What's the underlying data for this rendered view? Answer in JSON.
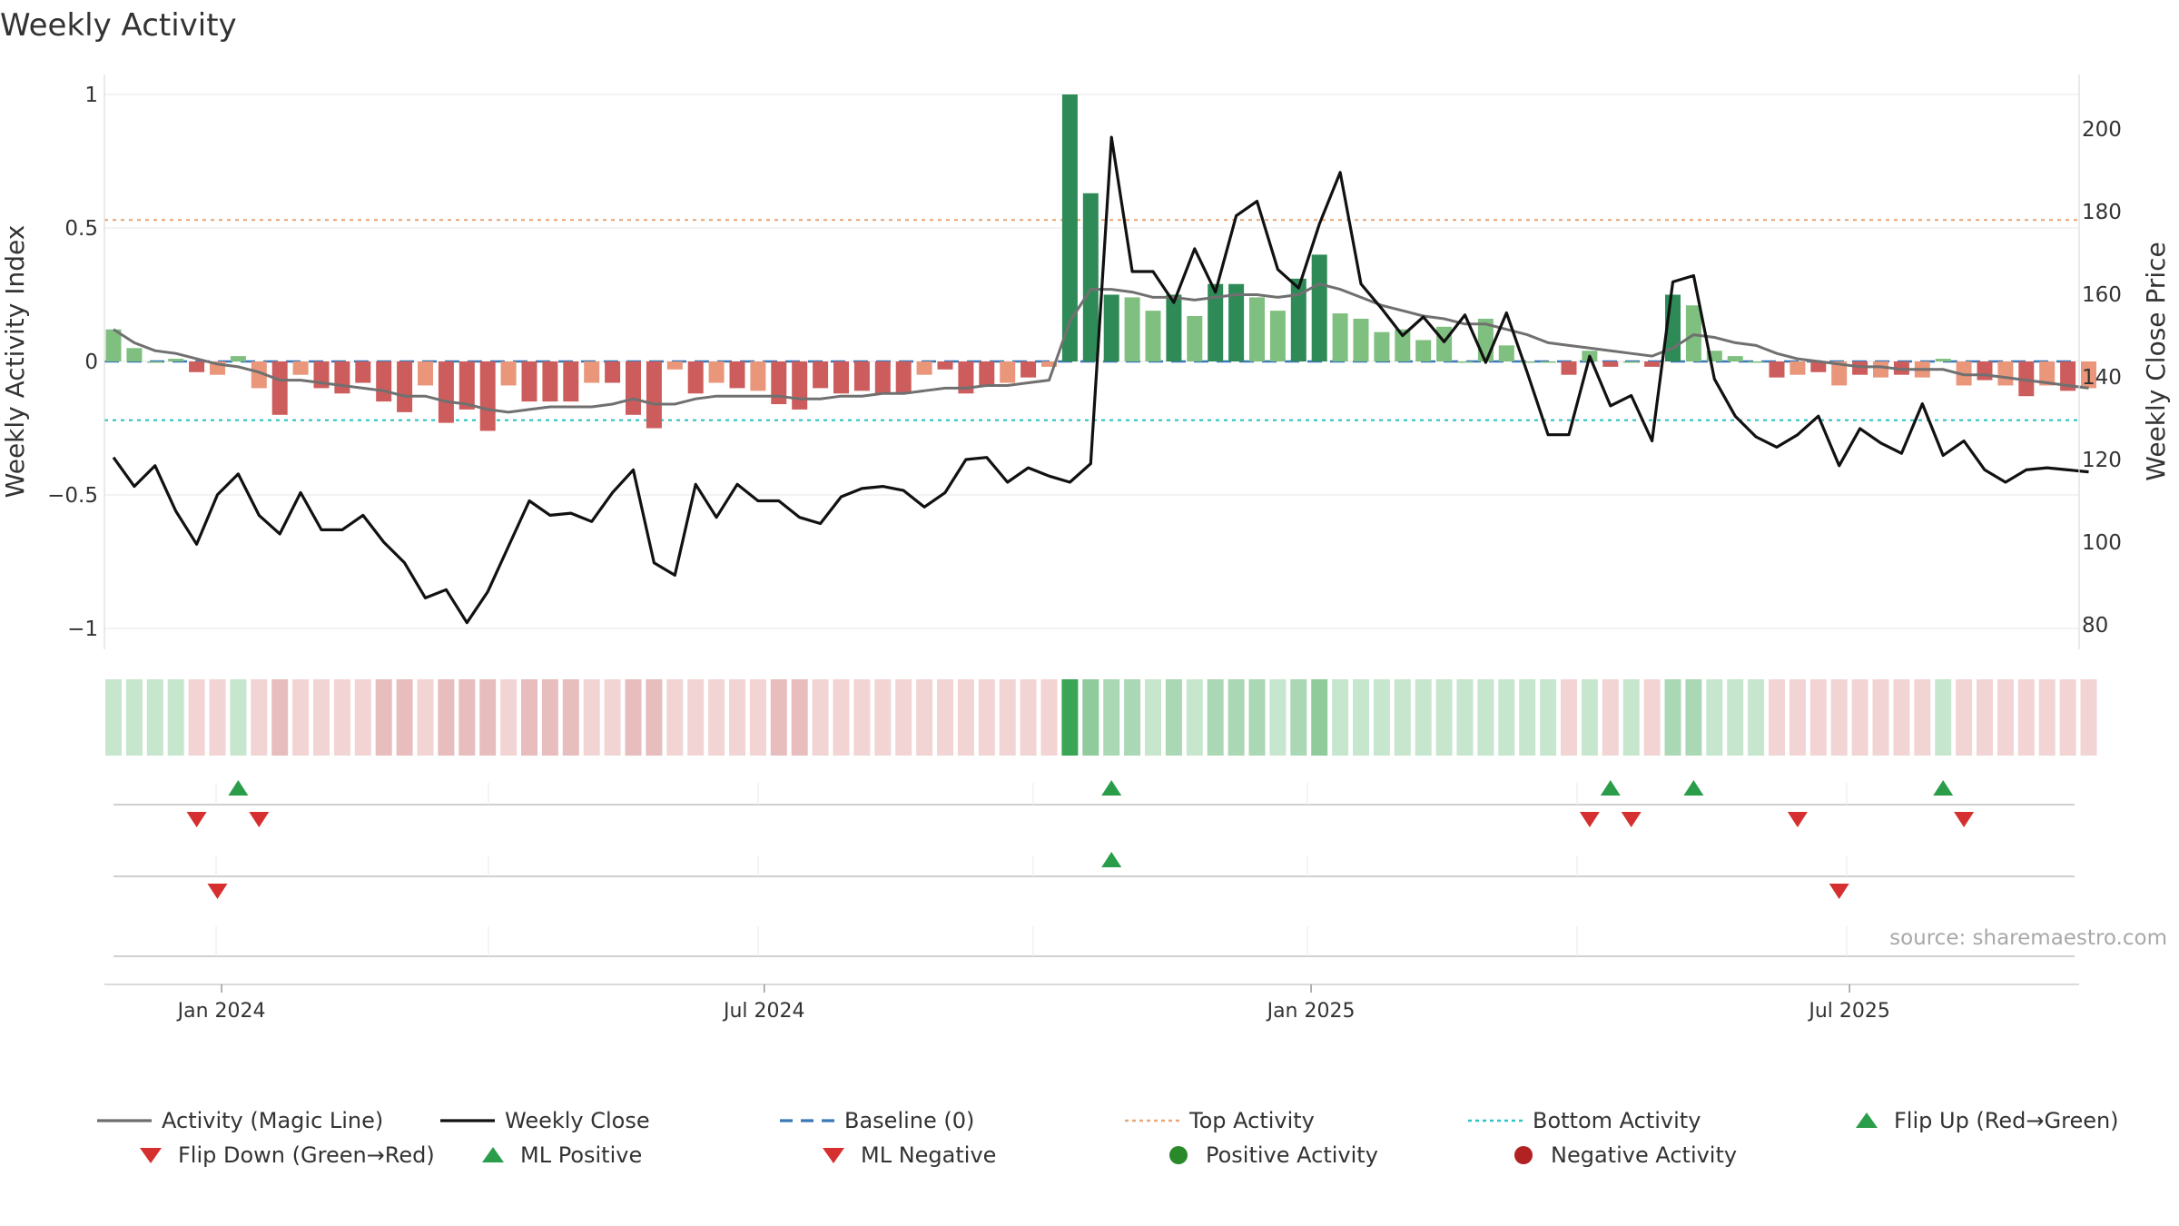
{
  "chart_data": {
    "type": "bar",
    "title": "Weekly Activity",
    "source": "source: sharemaestro.com",
    "left_axis": {
      "label": "Weekly Activity Index",
      "range": [
        -1.1,
        1.1
      ],
      "ticks": [
        1,
        0.5,
        0,
        -0.5,
        -1
      ],
      "tick_labels": [
        "1",
        "0.5",
        "0",
        "−0.5",
        "−1"
      ]
    },
    "right_axis": {
      "label": "Weekly Close Price",
      "range": [
        74,
        213
      ],
      "ticks": [
        200,
        180,
        160,
        140,
        120,
        100,
        80
      ],
      "tick_labels": [
        "200",
        "180",
        "160",
        "140",
        "120",
        "100",
        "80"
      ]
    },
    "x_axis": {
      "start": "2023-12-04",
      "weeks": 96,
      "date_ticks": [
        {
          "label": "Jan 2024",
          "week": 5.2
        },
        {
          "label": "Jul 2024",
          "week": 31.3
        },
        {
          "label": "Jan 2025",
          "week": 57.6
        },
        {
          "label": "Jul 2025",
          "week": 83.5
        }
      ]
    },
    "reference_lines": {
      "baseline": 0,
      "top_activity": 0.53,
      "bottom_activity": -0.22
    },
    "activity": [
      0.12,
      0.05,
      0.0,
      0.01,
      -0.04,
      -0.05,
      0.02,
      -0.1,
      -0.2,
      -0.05,
      -0.1,
      -0.12,
      -0.08,
      -0.15,
      -0.19,
      -0.09,
      -0.23,
      -0.18,
      -0.26,
      -0.09,
      -0.15,
      -0.15,
      -0.15,
      -0.08,
      -0.08,
      -0.2,
      -0.25,
      -0.03,
      -0.12,
      -0.08,
      -0.1,
      -0.11,
      -0.16,
      -0.18,
      -0.1,
      -0.12,
      -0.11,
      -0.12,
      -0.12,
      -0.05,
      -0.03,
      -0.12,
      -0.09,
      -0.08,
      -0.06,
      -0.02,
      1.0,
      0.63,
      0.25,
      0.24,
      0.19,
      0.25,
      0.17,
      0.29,
      0.29,
      0.24,
      0.19,
      0.31,
      0.4,
      0.18,
      0.16,
      0.11,
      0.12,
      0.08,
      0.13,
      0.0,
      0.16,
      0.06,
      0.0,
      0.0,
      -0.05,
      0.04,
      -0.02,
      0.0,
      -0.02,
      0.25,
      0.21,
      0.04,
      0.02,
      0.0,
      -0.06,
      -0.05,
      -0.04,
      -0.09,
      -0.05,
      -0.06,
      -0.05,
      -0.06,
      0.01,
      -0.09,
      -0.07,
      -0.09,
      -0.13,
      -0.09,
      -0.11,
      -0.1
    ],
    "magic_line": [
      0.12,
      0.07,
      0.04,
      0.03,
      0.01,
      -0.01,
      -0.02,
      -0.04,
      -0.07,
      -0.07,
      -0.08,
      -0.09,
      -0.1,
      -0.11,
      -0.13,
      -0.13,
      -0.15,
      -0.16,
      -0.18,
      -0.19,
      -0.18,
      -0.17,
      -0.17,
      -0.17,
      -0.16,
      -0.14,
      -0.16,
      -0.16,
      -0.14,
      -0.13,
      -0.13,
      -0.13,
      -0.13,
      -0.14,
      -0.14,
      -0.13,
      -0.13,
      -0.12,
      -0.12,
      -0.11,
      -0.1,
      -0.1,
      -0.09,
      -0.09,
      -0.08,
      -0.07,
      0.15,
      0.27,
      0.27,
      0.26,
      0.24,
      0.24,
      0.23,
      0.24,
      0.25,
      0.25,
      0.24,
      0.25,
      0.29,
      0.27,
      0.24,
      0.21,
      0.19,
      0.17,
      0.16,
      0.14,
      0.14,
      0.12,
      0.1,
      0.07,
      0.06,
      0.05,
      0.04,
      0.03,
      0.02,
      0.05,
      0.1,
      0.09,
      0.07,
      0.06,
      0.03,
      0.01,
      0.0,
      -0.01,
      -0.02,
      -0.02,
      -0.03,
      -0.03,
      -0.03,
      -0.05,
      -0.05,
      -0.06,
      -0.07,
      -0.08,
      -0.09,
      -0.1
    ],
    "weekly_close": [
      120.5,
      113.5,
      118.5,
      107.5,
      99.5,
      111.5,
      116.5,
      106.5,
      102,
      112,
      103,
      103,
      106.5,
      100,
      95,
      86.5,
      88.5,
      80.5,
      88,
      99,
      110,
      106.5,
      107,
      105,
      112,
      117.5,
      95,
      92,
      114,
      106,
      114,
      110,
      110,
      106,
      104.5,
      111,
      113,
      113.5,
      112.5,
      108.5,
      112,
      120,
      120.5,
      114.5,
      118,
      116,
      114.5,
      119,
      198,
      165.5,
      165.5,
      158,
      171,
      160.5,
      179,
      182.5,
      166,
      161.5,
      177,
      189.5,
      162.5,
      156.5,
      150,
      154.5,
      148.5,
      155,
      143.5,
      155.5,
      141,
      126,
      126,
      145,
      133,
      135.5,
      124.5,
      163,
      164.5,
      139.5,
      130.5,
      125.5,
      123,
      126,
      130.5,
      118.5,
      127.5,
      124,
      121.5,
      133.5,
      121,
      124.5,
      117.5,
      114.5,
      117.5,
      118,
      117.5,
      117
    ],
    "heat_strip": "weekly activity heat strip (green = positive, red = negative)",
    "signal_rows": [
      {
        "name": "flip-signals",
        "flip_up_weeks": [
          6,
          48,
          72,
          76,
          88
        ],
        "flip_down_weeks": [
          4,
          7,
          71,
          73,
          81,
          89
        ]
      },
      {
        "name": "ml-signals",
        "ml_positive_weeks": [
          48
        ],
        "ml_negative_weeks": [
          5,
          83
        ]
      },
      {
        "name": "activity-extremes",
        "positive_activity_weeks": [],
        "negative_activity_weeks": []
      }
    ],
    "legend": {
      "placement": "bottom",
      "items": [
        {
          "label": "Activity (Magic Line)",
          "symbol": "line",
          "color": "#6e6e6e"
        },
        {
          "label": "Weekly Close",
          "symbol": "line",
          "color": "#111111"
        },
        {
          "label": "Baseline (0)",
          "symbol": "dash",
          "color": "#3a78b6"
        },
        {
          "label": "Top Activity",
          "symbol": "dot-line",
          "color": "#e8a87c"
        },
        {
          "label": "Bottom Activity",
          "symbol": "dot-line",
          "color": "#2ec4c4"
        },
        {
          "label": "Flip Up (Red→Green)",
          "symbol": "tri-up",
          "color": "#2a9d4a"
        },
        {
          "label": "Flip Down (Green→Red)",
          "symbol": "tri-down",
          "color": "#d62f2f"
        },
        {
          "label": "ML Positive",
          "symbol": "tri-up",
          "color": "#2a9d4a"
        },
        {
          "label": "ML Negative",
          "symbol": "tri-down",
          "color": "#d62f2f"
        },
        {
          "label": "Positive Activity",
          "symbol": "circle",
          "color": "#2a8a2a"
        },
        {
          "label": "Negative Activity",
          "symbol": "circle",
          "color": "#b22222"
        }
      ]
    },
    "colors": {
      "pos_strong": "#2e8b57",
      "pos_light": "#7fbf7f",
      "neg_strong": "#cd5c5c",
      "neg_light": "#e9967a",
      "grid": "#ececec",
      "signal_line": "#d0d0d0"
    }
  }
}
